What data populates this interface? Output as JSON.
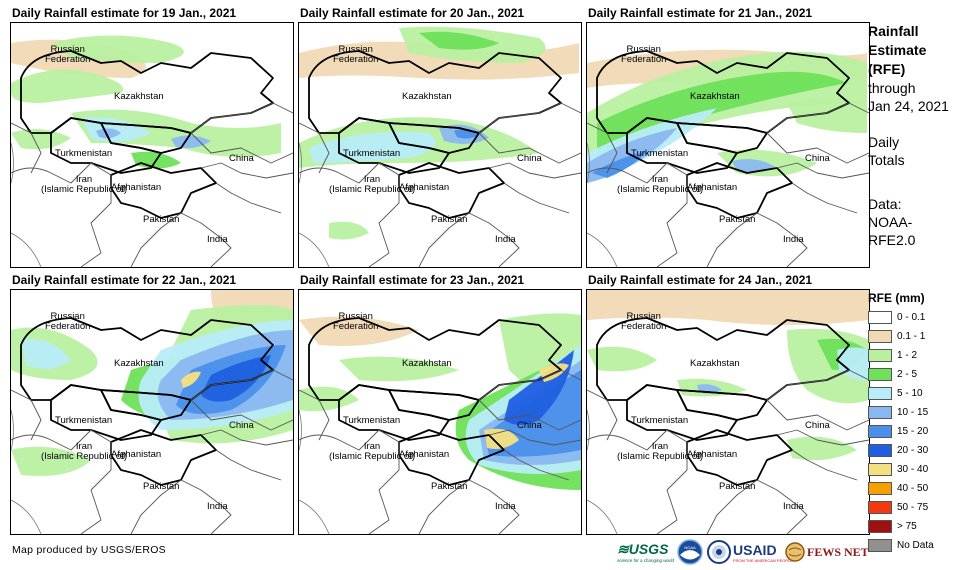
{
  "panels": [
    {
      "title": "Daily Rainfall estimate for 19 Jan., 2021",
      "rain_pattern": "scattered-north-and-central"
    },
    {
      "title": "Daily Rainfall estimate for 20 Jan., 2021",
      "rain_pattern": "band-north-central"
    },
    {
      "title": "Daily Rainfall estimate for 21 Jan., 2021",
      "rain_pattern": "heavy-west-band"
    },
    {
      "title": "Daily Rainfall estimate for 22 Jan., 2021",
      "rain_pattern": "heavy-east-diagonal"
    },
    {
      "title": "Daily Rainfall estimate for 23 Jan., 2021",
      "rain_pattern": "heavy-south-east"
    },
    {
      "title": "Daily Rainfall estimate for 24 Jan., 2021",
      "rain_pattern": "light-east"
    }
  ],
  "map_labels": {
    "russia": "Russian\nFederation",
    "kazakhstan": "Kazakhstan",
    "turkmenistan": "Turkmenistan",
    "iran": "Iran\n(Islamic Republic of)",
    "afghanistan": "Afghanistan",
    "pakistan": "Pakistan",
    "india": "India",
    "china": "China"
  },
  "side_panel": {
    "title": "Rainfall\nEstimate\n(RFE)",
    "through": "through\nJan 24, 2021",
    "daily": "Daily\nTotals",
    "data": "Data:\nNOAA-\nRFE2.0"
  },
  "legend": {
    "title": "RFE (mm)",
    "items": [
      {
        "label": "0 - 0.1",
        "color": "#ffffff"
      },
      {
        "label": "0.1 - 1",
        "color": "#f0d9b5"
      },
      {
        "label": "1 - 2",
        "color": "#b9f0a0"
      },
      {
        "label": "2 - 5",
        "color": "#6ee05a"
      },
      {
        "label": "5 - 10",
        "color": "#b8ecf8"
      },
      {
        "label": "10 - 15",
        "color": "#8ab8f0"
      },
      {
        "label": "15 - 20",
        "color": "#4a90ea"
      },
      {
        "label": "20 - 30",
        "color": "#1f5fe0"
      },
      {
        "label": "30 - 40",
        "color": "#f5e080"
      },
      {
        "label": "40 - 50",
        "color": "#f5a000"
      },
      {
        "label": "50 - 75",
        "color": "#f03a10"
      },
      {
        "label": "> 75",
        "color": "#a01010"
      },
      {
        "label": "No Data",
        "color": "#909090"
      }
    ]
  },
  "credit": "Map produced by USGS/EROS",
  "logos": {
    "usgs": "≋USGS",
    "usgs_tagline": "science for a changing world",
    "noaa": "NOAA",
    "usaid": "USAID",
    "usaid_tagline": "FROM THE AMERICAN PEOPLE",
    "fewsnet": "FEWS NET"
  }
}
